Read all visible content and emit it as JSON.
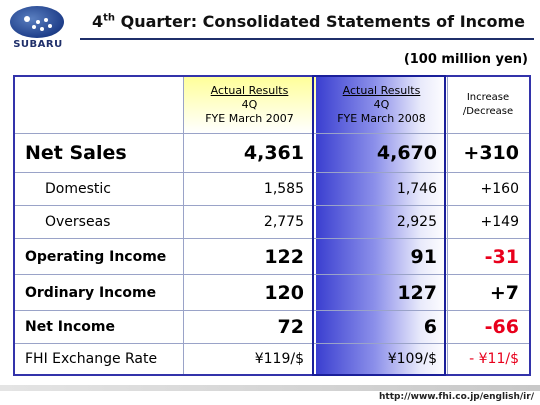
{
  "header": {
    "logo_text": "SUBARU",
    "title_prefix": "4",
    "title_sup": "th",
    "title_rest": " Quarter: Consolidated Statements of Income"
  },
  "unit": "(100 million yen)",
  "columns": {
    "col1": {
      "line1": "Actual Results",
      "line2": "4Q",
      "line3": "FYE March 2007"
    },
    "col2": {
      "line1": "Actual Results",
      "line2": "4Q",
      "line3": "FYE March 2008"
    },
    "col3": {
      "line1": "Increase",
      "line2": "/Decrease"
    }
  },
  "rows": [
    {
      "label": "Net Sales",
      "v2007": "4,361",
      "v2008": "4,670",
      "change": "+310"
    },
    {
      "label": "Domestic",
      "v2007": "1,585",
      "v2008": "1,746",
      "change": "+160"
    },
    {
      "label": "Overseas",
      "v2007": "2,775",
      "v2008": "2,925",
      "change": "+149"
    },
    {
      "label": "Operating Income",
      "v2007": "122",
      "v2008": "91",
      "change": "-31"
    },
    {
      "label": "Ordinary Income",
      "v2007": "120",
      "v2008": "127",
      "change": "+7"
    },
    {
      "label": "Net Income",
      "v2007": "72",
      "v2008": "6",
      "change": "-66"
    },
    {
      "label": "FHI Exchange Rate",
      "v2007": "¥119/$",
      "v2008": "¥109/$",
      "change": "- ¥11/$"
    }
  ],
  "colors": {
    "negative": "#e8001c",
    "accent": "#1a1f9a",
    "header_yellow": "#ffff9a"
  },
  "footer": {
    "url": "http://www.fhi.co.jp/english/ir/"
  }
}
